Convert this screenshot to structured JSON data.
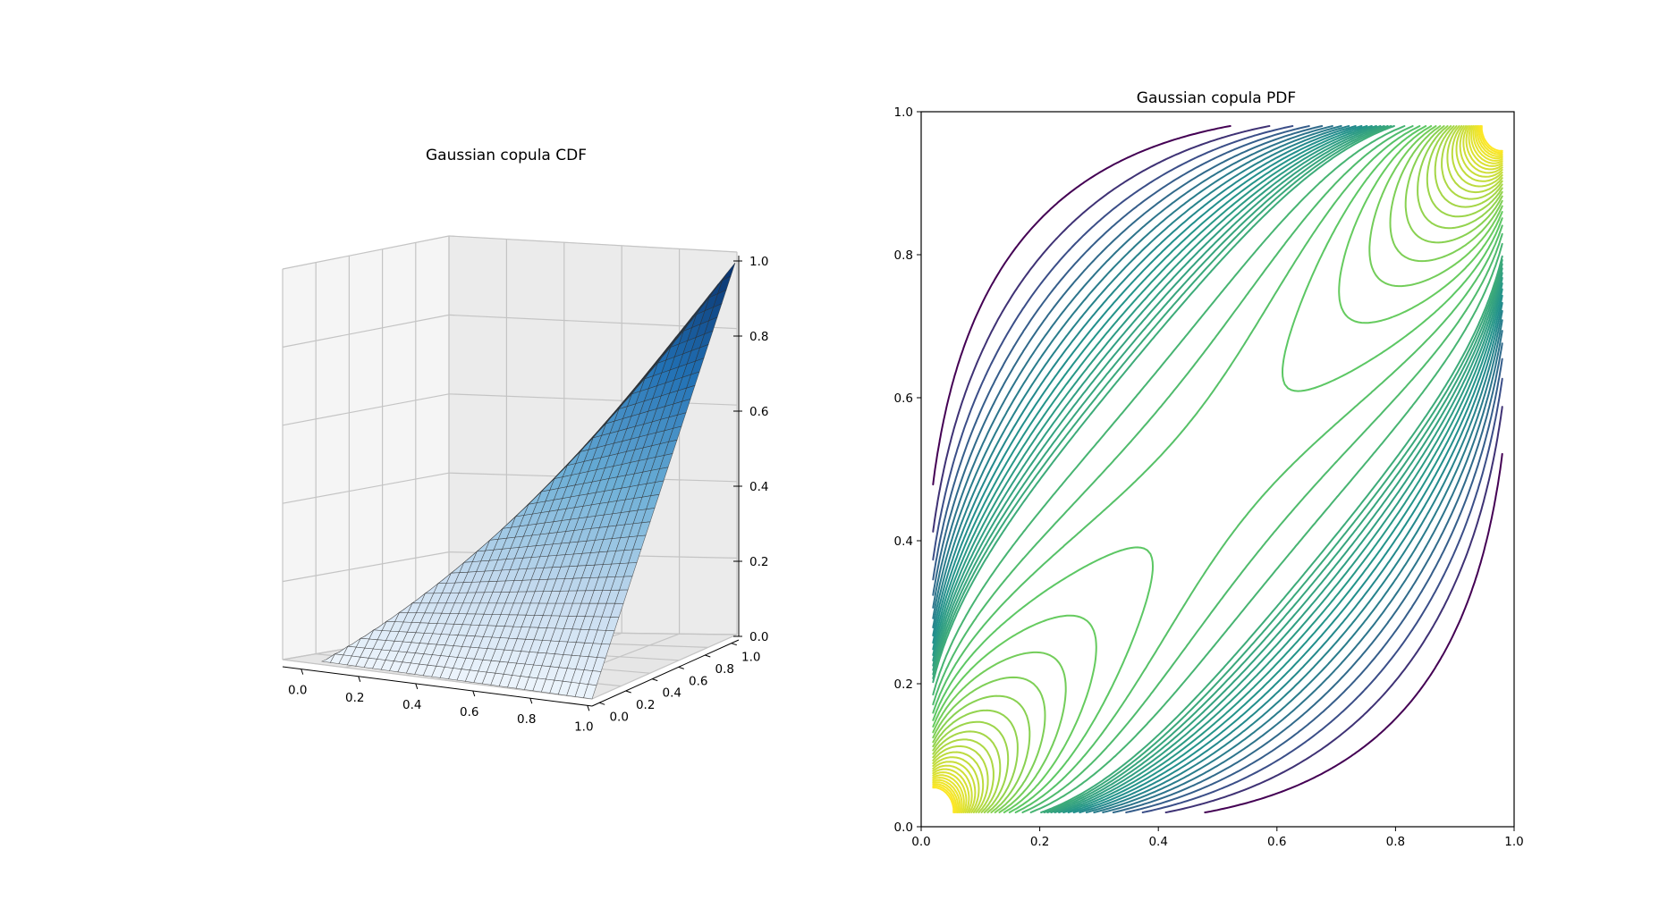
{
  "chart_data": [
    {
      "type": "surface3d",
      "title": "Gaussian copula CDF",
      "xlabel": "",
      "ylabel": "",
      "zlabel": "",
      "x_ticks": [
        "0.0",
        "0.2",
        "0.4",
        "0.6",
        "0.8",
        "1.0"
      ],
      "y_ticks": [
        "0.0",
        "0.2",
        "0.4",
        "0.6",
        "0.8",
        "1.0"
      ],
      "z_ticks": [
        "0.0",
        "0.2",
        "0.4",
        "0.6",
        "0.8",
        "1.0"
      ],
      "xlim": [
        0,
        1
      ],
      "ylim": [
        0,
        1
      ],
      "zlim": [
        0,
        1
      ],
      "grid": true,
      "colormap": "Blues",
      "surface_color": "#1f5fa0",
      "corner_values": [
        {
          "u": 0,
          "v": 0,
          "C": 0
        },
        {
          "u": 1,
          "v": 0,
          "C": 0
        },
        {
          "u": 0,
          "v": 1,
          "C": 0
        },
        {
          "u": 1,
          "v": 1,
          "C": 1
        }
      ]
    },
    {
      "type": "contour",
      "title": "Gaussian copula PDF",
      "xlabel": "",
      "ylabel": "",
      "x_ticks": [
        "0.0",
        "0.2",
        "0.4",
        "0.6",
        "0.8",
        "1.0"
      ],
      "y_ticks": [
        "0.0",
        "0.2",
        "0.4",
        "0.6",
        "0.8",
        "1.0"
      ],
      "xlim": [
        0,
        1
      ],
      "ylim": [
        0,
        1
      ],
      "grid": false,
      "colormap": "viridis",
      "correlation": 0.8,
      "levels_low_min": 0.05,
      "levels_low_max": 0.95,
      "levels_high_min": 1.15,
      "levels_high_max": 6.0,
      "colors": [
        "#440154",
        "#3b528b",
        "#21918c",
        "#5ec962",
        "#fde725"
      ]
    }
  ]
}
